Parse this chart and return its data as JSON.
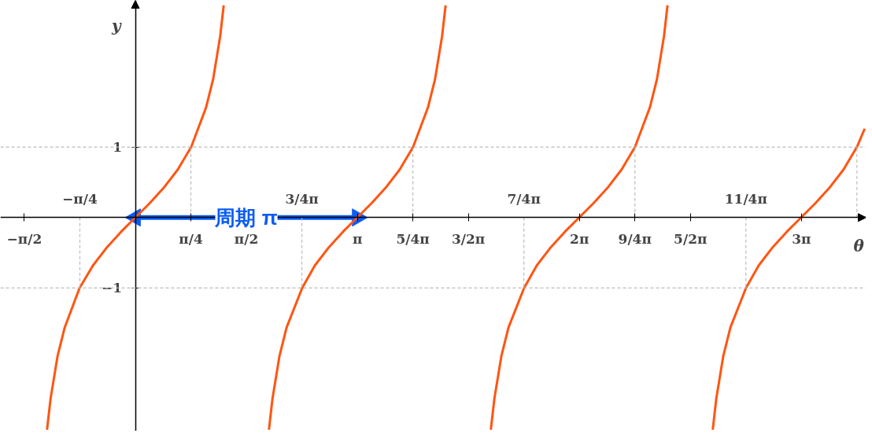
{
  "chart_data": {
    "type": "line",
    "xlabel": "θ",
    "ylabel": "y",
    "xlim": [
      -1.91,
      10.34
    ],
    "ylim": [
      -3.03,
      3.08
    ],
    "xticks": [
      {
        "value": -1.5708,
        "label": "−π/2"
      },
      {
        "value": 0.7854,
        "label": "π/4"
      },
      {
        "value": 1.5708,
        "label": "π/2"
      },
      {
        "value": 3.1416,
        "label": "π"
      },
      {
        "value": 3.927,
        "label": "5/4π"
      },
      {
        "value": 4.7124,
        "label": "3/2π"
      },
      {
        "value": 6.2832,
        "label": "2π"
      },
      {
        "value": 7.0686,
        "label": "9/4π"
      },
      {
        "value": 7.854,
        "label": "5/2π"
      },
      {
        "value": 9.4248,
        "label": "3π"
      }
    ],
    "annotations": [
      {
        "text": "−π/4",
        "x": -0.7854,
        "y": 0
      },
      {
        "text": "3/4π",
        "x": 2.3562,
        "y": 0
      },
      {
        "text": "7/4π",
        "x": 5.4978,
        "y": 0
      },
      {
        "text": "11/4π",
        "x": 8.6394,
        "y": 0
      },
      {
        "text": "周期 π",
        "x": 1.5708,
        "y": 0
      }
    ],
    "yticks": [
      {
        "value": 1,
        "label": "1"
      },
      {
        "value": -1,
        "label": "−1"
      }
    ],
    "ref_lines": [
      {
        "axis": "y",
        "value": 1,
        "label": null,
        "color": "#bbbbbb",
        "line_style": "dashed"
      },
      {
        "axis": "y",
        "value": -1,
        "label": null,
        "color": "#bbbbbb",
        "line_style": "dashed"
      }
    ],
    "series": [
      {
        "color": "#0a5cf5",
        "marker": "triangle",
        "x": [
          0,
          3.1416
        ],
        "values": [
          0,
          0
        ]
      },
      {
        "color": "#ff5512",
        "x": [
          -1.25,
          -1.2,
          -1.1,
          -1,
          -0.79,
          -0.6,
          -0.4,
          -0.2,
          0,
          0.2,
          0.4,
          0.6,
          0.79,
          1,
          1.1,
          1.2,
          1.25
        ],
        "values": [
          -3.01,
          -2.57,
          -1.96,
          -1.56,
          -1,
          -0.68,
          -0.42,
          -0.2,
          0,
          0.2,
          0.42,
          0.68,
          1,
          1.56,
          1.96,
          2.57,
          3.01
        ]
      },
      {
        "color": "#ff5512",
        "x": [
          1.89,
          1.94,
          2.04,
          2.14,
          2.36,
          2.54,
          2.74,
          2.94,
          3.14,
          3.34,
          3.54,
          3.74,
          3.93,
          4.14,
          4.24,
          4.34,
          4.39
        ],
        "values": [
          -3.01,
          -2.57,
          -1.96,
          -1.56,
          -1,
          -0.68,
          -0.42,
          -0.2,
          0,
          0.2,
          0.42,
          0.68,
          1,
          1.56,
          1.96,
          2.57,
          3.01
        ]
      },
      {
        "color": "#ff5512",
        "x": [
          5.03,
          5.08,
          5.18,
          5.28,
          5.5,
          5.68,
          5.88,
          6.08,
          6.28,
          6.48,
          6.68,
          6.88,
          7.07,
          7.28,
          7.38,
          7.48,
          7.53
        ],
        "values": [
          -3.01,
          -2.57,
          -1.96,
          -1.56,
          -1,
          -0.68,
          -0.42,
          -0.2,
          0,
          0.2,
          0.42,
          0.68,
          1,
          1.56,
          1.96,
          2.57,
          3.01
        ]
      },
      {
        "color": "#ff5512",
        "x": [
          8.17,
          8.22,
          8.32,
          8.42,
          8.64,
          8.82,
          9.02,
          9.22,
          9.42,
          9.62,
          9.82,
          10.02,
          10.21,
          10.32
        ],
        "values": [
          -3.01,
          -2.57,
          -1.96,
          -1.56,
          -1,
          -0.68,
          -0.42,
          -0.2,
          0,
          0.2,
          0.42,
          0.68,
          1,
          1.26
        ]
      },
      {
        "color": "#bbbbbb",
        "line_style": "dashed",
        "x": [
          -0.7854,
          -0.7854
        ],
        "values": [
          0,
          -1
        ]
      },
      {
        "color": "#bbbbbb",
        "line_style": "dashed",
        "x": [
          0.7854,
          0.7854
        ],
        "values": [
          0,
          1
        ]
      },
      {
        "color": "#bbbbbb",
        "line_style": "dashed",
        "x": [
          2.3562,
          2.3562
        ],
        "values": [
          0,
          -1
        ]
      },
      {
        "color": "#bbbbbb",
        "line_style": "dashed",
        "x": [
          3.927,
          3.927
        ],
        "values": [
          0,
          1
        ]
      },
      {
        "color": "#bbbbbb",
        "line_style": "dashed",
        "x": [
          5.4978,
          5.4978
        ],
        "values": [
          0,
          -1
        ]
      },
      {
        "color": "#bbbbbb",
        "line_style": "dashed",
        "x": [
          7.0686,
          7.0686
        ],
        "values": [
          0,
          1
        ]
      },
      {
        "color": "#bbbbbb",
        "line_style": "dashed",
        "x": [
          8.6394,
          8.6394
        ],
        "values": [
          0,
          -1
        ]
      },
      {
        "color": "#bbbbbb",
        "line_style": "dashed",
        "x": [
          10.2102,
          10.2102
        ],
        "values": [
          0,
          1
        ]
      }
    ]
  }
}
